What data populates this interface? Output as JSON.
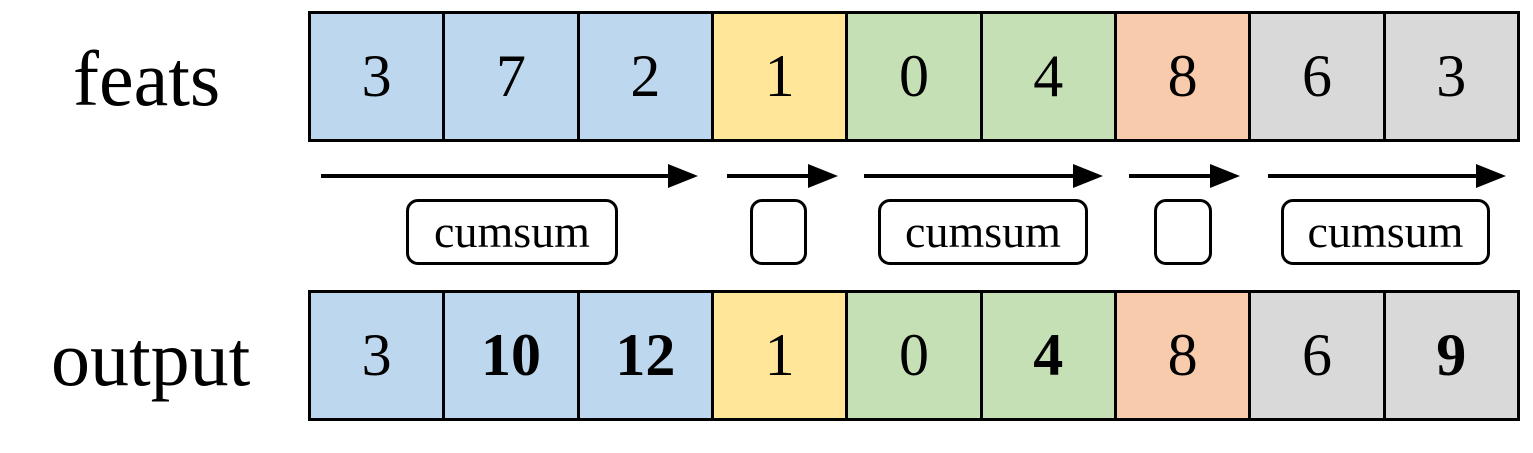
{
  "labels": {
    "feats": "feats",
    "output": "output"
  },
  "colors": {
    "blue": "#bdd7ee",
    "yellow": "#ffe699",
    "green": "#c5e0b4",
    "orange": "#f8cbad",
    "gray": "#d9d9d9"
  },
  "feats": [
    {
      "value": "3",
      "group": "blue"
    },
    {
      "value": "7",
      "group": "blue"
    },
    {
      "value": "2",
      "group": "blue"
    },
    {
      "value": "1",
      "group": "yellow"
    },
    {
      "value": "0",
      "group": "green"
    },
    {
      "value": "4",
      "group": "green"
    },
    {
      "value": "8",
      "group": "orange"
    },
    {
      "value": "6",
      "group": "gray"
    },
    {
      "value": "3",
      "group": "gray"
    }
  ],
  "output": [
    {
      "value": "3",
      "group": "blue",
      "bold": false
    },
    {
      "value": "10",
      "group": "blue",
      "bold": true
    },
    {
      "value": "12",
      "group": "blue",
      "bold": true
    },
    {
      "value": "1",
      "group": "yellow",
      "bold": false
    },
    {
      "value": "0",
      "group": "green",
      "bold": false
    },
    {
      "value": "4",
      "group": "green",
      "bold": true
    },
    {
      "value": "8",
      "group": "orange",
      "bold": false
    },
    {
      "value": "6",
      "group": "gray",
      "bold": false
    },
    {
      "value": "9",
      "group": "gray",
      "bold": true
    }
  ],
  "operations": [
    {
      "label": "cumsum"
    },
    {
      "label": ""
    },
    {
      "label": "cumsum"
    },
    {
      "label": ""
    },
    {
      "label": "cumsum"
    }
  ]
}
